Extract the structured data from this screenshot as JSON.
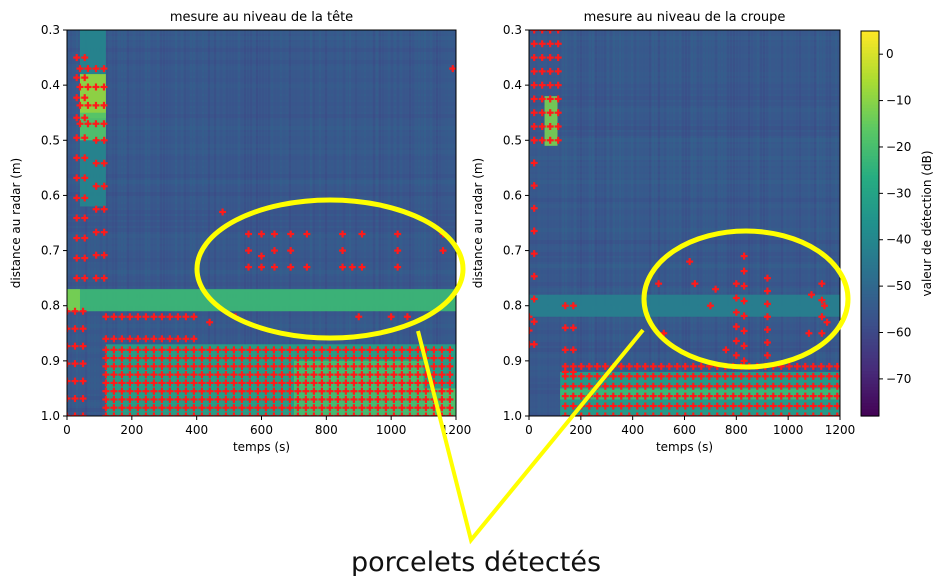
{
  "chart_data": {
    "charts": [
      {
        "type": "heatmap",
        "title": "mesure au niveau de la tête",
        "xlabel": "temps (s)",
        "ylabel": "distance au radar (m)",
        "xlim": [
          0,
          1200
        ],
        "ylim": [
          0.3,
          1.0
        ],
        "y_inverted": true,
        "xticks": [
          0,
          200,
          400,
          600,
          800,
          1000,
          1200
        ],
        "yticks": [
          0.3,
          0.4,
          0.5,
          0.6,
          0.7,
          0.8,
          0.9,
          1.0
        ],
        "bands": [
          {
            "x": [
              0,
              1200
            ],
            "y": [
              0.77,
              0.81
            ],
            "value": -22
          },
          {
            "x": [
              0,
              40
            ],
            "y": [
              0.77,
              0.81
            ],
            "value": -12
          },
          {
            "x": [
              40,
              120
            ],
            "y": [
              0.3,
              0.62
            ],
            "value": -40
          },
          {
            "x": [
              40,
              120
            ],
            "y": [
              0.38,
              0.46
            ],
            "value": -8
          },
          {
            "x": [
              40,
              120
            ],
            "y": [
              0.45,
              0.5
            ],
            "value": -18
          },
          {
            "x": [
              120,
              1200
            ],
            "y": [
              0.87,
              1.0
            ],
            "value": -30
          },
          {
            "x": [
              700,
              1100
            ],
            "y": [
              0.9,
              1.0
            ],
            "value": -20
          },
          {
            "x": [
              1100,
              1200
            ],
            "y": [
              0.95,
              1.0
            ],
            "value": -18
          }
        ],
        "detections": [
          {
            "x": 560,
            "y": 0.67
          },
          {
            "x": 560,
            "y": 0.7
          },
          {
            "x": 560,
            "y": 0.73
          },
          {
            "x": 600,
            "y": 0.67
          },
          {
            "x": 600,
            "y": 0.71
          },
          {
            "x": 600,
            "y": 0.73
          },
          {
            "x": 640,
            "y": 0.67
          },
          {
            "x": 640,
            "y": 0.7
          },
          {
            "x": 640,
            "y": 0.73
          },
          {
            "x": 690,
            "y": 0.67
          },
          {
            "x": 690,
            "y": 0.7
          },
          {
            "x": 690,
            "y": 0.73
          },
          {
            "x": 740,
            "y": 0.67
          },
          {
            "x": 740,
            "y": 0.73
          },
          {
            "x": 850,
            "y": 0.67
          },
          {
            "x": 850,
            "y": 0.7
          },
          {
            "x": 850,
            "y": 0.73
          },
          {
            "x": 880,
            "y": 0.73
          },
          {
            "x": 910,
            "y": 0.67
          },
          {
            "x": 910,
            "y": 0.73
          },
          {
            "x": 1020,
            "y": 0.67
          },
          {
            "x": 1020,
            "y": 0.7
          },
          {
            "x": 1020,
            "y": 0.73
          },
          {
            "x": 1160,
            "y": 0.67
          },
          {
            "x": 1160,
            "y": 0.7
          },
          {
            "x": 480,
            "y": 0.63
          },
          {
            "x": 440,
            "y": 0.83
          },
          {
            "x": 1190,
            "y": 0.37
          },
          {
            "x": 900,
            "y": 0.82
          },
          {
            "x": 1000,
            "y": 0.82
          },
          {
            "x": 1050,
            "y": 0.82
          },
          {
            "x": 520,
            "y": 0.82
          }
        ],
        "detection_bands": [
          {
            "x": [
              40,
              120
            ],
            "y": [
              0.37,
              0.47
            ],
            "rows": 4
          },
          {
            "x": [
              30,
              55
            ],
            "y": [
              0.35,
              0.75
            ],
            "rows": 12
          },
          {
            "x": [
              0,
              60
            ],
            "y": [
              0.81,
              1.0
            ],
            "rows": 7
          },
          {
            "x": [
              90,
              120
            ],
            "y": [
              0.5,
              0.75
            ],
            "rows": 7
          },
          {
            "x": [
              120,
              1200
            ],
            "y": [
              0.88,
              1.0
            ],
            "rows": 9
          },
          {
            "x": [
              120,
              400
            ],
            "y": [
              0.82,
              0.86
            ],
            "rows": 2
          }
        ]
      },
      {
        "type": "heatmap",
        "title": "mesure au niveau de la croupe",
        "xlabel": "temps (s)",
        "xlim": [
          0,
          1200
        ],
        "ylim": [
          0.3,
          1.0
        ],
        "y_inverted": true,
        "xticks": [
          0,
          200,
          400,
          600,
          800,
          1000,
          1200
        ],
        "yticks": [
          0.3,
          0.4,
          0.5,
          0.6,
          0.7,
          0.8,
          0.9,
          1.0
        ],
        "bands": [
          {
            "x": [
              0,
              1200
            ],
            "y": [
              0.78,
              0.82
            ],
            "value": -42
          },
          {
            "x": [
              60,
              110
            ],
            "y": [
              0.42,
              0.51
            ],
            "value": -12
          },
          {
            "x": [
              120,
              1200
            ],
            "y": [
              0.92,
              1.0
            ],
            "value": -32
          },
          {
            "x": [
              120,
              1200
            ],
            "y": [
              0.95,
              0.97
            ],
            "value": -22
          }
        ],
        "detections": [
          {
            "x": 500,
            "y": 0.76
          },
          {
            "x": 520,
            "y": 0.85
          },
          {
            "x": 620,
            "y": 0.72
          },
          {
            "x": 640,
            "y": 0.76
          },
          {
            "x": 700,
            "y": 0.8
          },
          {
            "x": 720,
            "y": 0.77
          },
          {
            "x": 760,
            "y": 0.88
          },
          {
            "x": 1080,
            "y": 0.85
          },
          {
            "x": 1090,
            "y": 0.78
          },
          {
            "x": 1140,
            "y": 0.8
          },
          {
            "x": 1150,
            "y": 0.83
          }
        ],
        "detection_bands": [
          {
            "x": [
              20,
              130
            ],
            "y": [
              0.3,
              0.5
            ],
            "rows": 9
          },
          {
            "x": [
              20,
              40
            ],
            "y": [
              0.5,
              0.87
            ],
            "rows": 10
          },
          {
            "x": [
              0,
              30
            ],
            "y": [
              0.82,
              0.87
            ],
            "rows": 3
          },
          {
            "x": [
              830,
              850
            ],
            "y": [
              0.71,
              0.9
            ],
            "rows": 8
          },
          {
            "x": [
              800,
              820
            ],
            "y": [
              0.76,
              0.89
            ],
            "rows": 6
          },
          {
            "x": [
              920,
              940
            ],
            "y": [
              0.75,
              0.89
            ],
            "rows": 7
          },
          {
            "x": [
              1130,
              1150
            ],
            "y": [
              0.76,
              0.85
            ],
            "rows": 4
          },
          {
            "x": [
              140,
              1200
            ],
            "y": [
              0.91,
              1.0
            ],
            "rows": 6
          },
          {
            "x": [
              140,
              200
            ],
            "y": [
              0.8,
              0.92
            ],
            "rows": 4
          }
        ]
      }
    ],
    "colorbar": {
      "label": "valeur de détection (dB)",
      "min": -78,
      "max": 5,
      "ticks": [
        0,
        -10,
        -20,
        -30,
        -40,
        -50,
        -60,
        -70
      ],
      "tick_labels": [
        "0",
        "−10",
        "−20",
        "−30",
        "−40",
        "−50",
        "−60",
        "−70"
      ],
      "colormap": "viridis",
      "background_value": -55
    },
    "annotation": {
      "text": "porcelets détectés",
      "highlight_color": "#ffff00"
    },
    "detection_color": "#ff1a1a"
  }
}
